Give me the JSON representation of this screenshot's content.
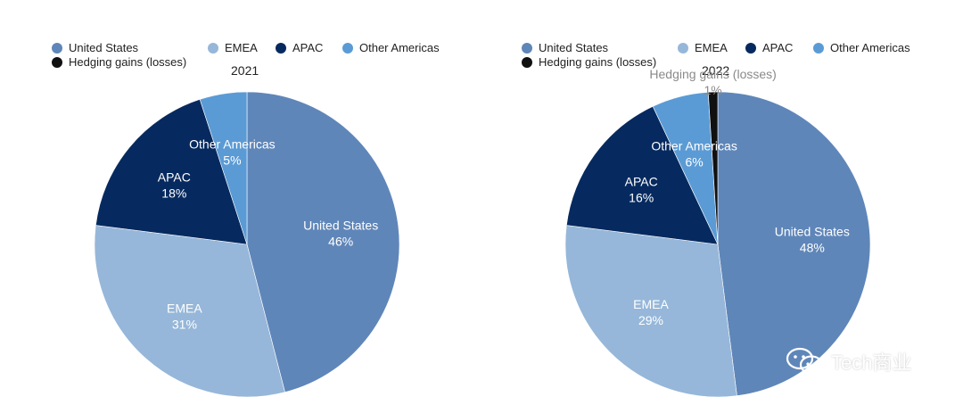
{
  "chart_data": [
    {
      "type": "pie",
      "title": "2021",
      "legend": [
        "United States",
        "EMEA",
        "APAC",
        "Other Americas",
        "Hedging gains (losses)"
      ],
      "slices": [
        {
          "label": "United States",
          "value": 46,
          "text": "46%",
          "color": "#5f86b9"
        },
        {
          "label": "EMEA",
          "value": 31,
          "text": "31%",
          "color": "#96b7d9"
        },
        {
          "label": "APAC",
          "value": 18,
          "text": "18%",
          "color": "#062a5f"
        },
        {
          "label": "Other Americas",
          "value": 5,
          "text": "5%",
          "color": "#5b9bd5"
        }
      ]
    },
    {
      "type": "pie",
      "title": "2022",
      "legend": [
        "United States",
        "EMEA",
        "APAC",
        "Other Americas",
        "Hedging gains (losses)"
      ],
      "slices": [
        {
          "label": "United States",
          "value": 48,
          "text": "48%",
          "color": "#5f86b9"
        },
        {
          "label": "EMEA",
          "value": 29,
          "text": "29%",
          "color": "#96b7d9"
        },
        {
          "label": "APAC",
          "value": 16,
          "text": "16%",
          "color": "#062a5f"
        },
        {
          "label": "Other Americas",
          "value": 6,
          "text": "6%",
          "color": "#5b9bd5"
        },
        {
          "label": "Hedging gains (losses)",
          "value": 1,
          "text": "1%",
          "color": "#111111"
        }
      ]
    }
  ],
  "legend_colors": {
    "United States": "#5f86b9",
    "EMEA": "#96b7d9",
    "APAC": "#062a5f",
    "Other Americas": "#5b9bd5",
    "Hedging gains (losses)": "#111111"
  },
  "watermark": {
    "text": "Tech商业",
    "icon": "wechat-icon"
  }
}
